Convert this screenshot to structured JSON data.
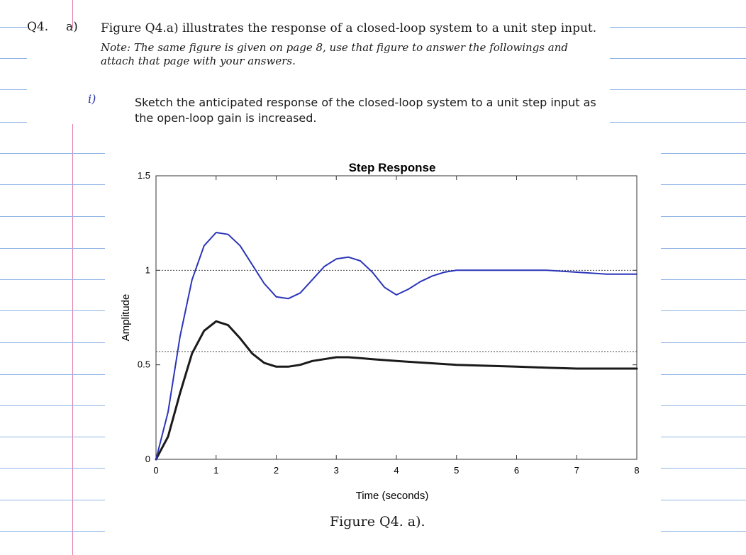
{
  "question": {
    "number": "Q4.",
    "part": "a)",
    "statement": "Figure Q4.a) illustrates the response of a closed-loop system to a unit step input.",
    "note": "Note: The same figure is given on page 8, use that figure to answer the followings and attach that page with your answers.",
    "subpart_marker": "i)",
    "subpart_text": "Sketch the anticipated response of the closed-loop system to a unit step input as the open-loop gain is increased."
  },
  "caption": "Figure Q4. a).",
  "colors": {
    "printed_curve": "#1a1a1a",
    "handdrawn_curve": "#2b35b8",
    "rule_lines": "#8fb4e6",
    "margin_line": "#e07aa8"
  },
  "chart_data": {
    "type": "line",
    "title": "Step Response",
    "xlabel": "Time (seconds)",
    "ylabel": "Amplitude",
    "xlim": [
      0,
      8
    ],
    "ylim": [
      0,
      1.5
    ],
    "x_ticks": [
      "0",
      "1",
      "2",
      "3",
      "4",
      "5",
      "6",
      "7",
      "8"
    ],
    "y_ticks": [
      "0",
      "0.5",
      "1",
      "1.5"
    ],
    "reference_lines": [
      1,
      0.57
    ],
    "series": [
      {
        "style": "printed",
        "x": [
          0,
          0.2,
          0.4,
          0.6,
          0.8,
          1.0,
          1.2,
          1.4,
          1.6,
          1.8,
          2.0,
          2.2,
          2.4,
          2.6,
          2.8,
          3.0,
          3.2,
          3.4,
          3.6,
          4.0,
          4.5,
          5.0,
          5.5,
          6.0,
          6.5,
          7.0,
          7.5,
          8.0
        ],
        "y": [
          0,
          0.12,
          0.35,
          0.56,
          0.68,
          0.73,
          0.71,
          0.64,
          0.56,
          0.51,
          0.49,
          0.49,
          0.5,
          0.52,
          0.53,
          0.54,
          0.54,
          0.535,
          0.53,
          0.52,
          0.51,
          0.5,
          0.495,
          0.49,
          0.485,
          0.48,
          0.48,
          0.48
        ]
      },
      {
        "style": "hand-drawn",
        "x": [
          0,
          0.2,
          0.4,
          0.6,
          0.8,
          1.0,
          1.2,
          1.4,
          1.6,
          1.8,
          2.0,
          2.2,
          2.4,
          2.6,
          2.8,
          3.0,
          3.2,
          3.4,
          3.6,
          3.8,
          4.0,
          4.2,
          4.4,
          4.6,
          4.8,
          5.0,
          5.5,
          6.0,
          6.5,
          7.0,
          7.5,
          8.0
        ],
        "y": [
          0,
          0.25,
          0.65,
          0.95,
          1.13,
          1.2,
          1.19,
          1.13,
          1.03,
          0.93,
          0.86,
          0.85,
          0.88,
          0.95,
          1.02,
          1.06,
          1.07,
          1.05,
          0.99,
          0.91,
          0.87,
          0.9,
          0.94,
          0.97,
          0.99,
          1.0,
          1.0,
          1.0,
          1.0,
          0.99,
          0.98,
          0.98
        ]
      }
    ]
  }
}
